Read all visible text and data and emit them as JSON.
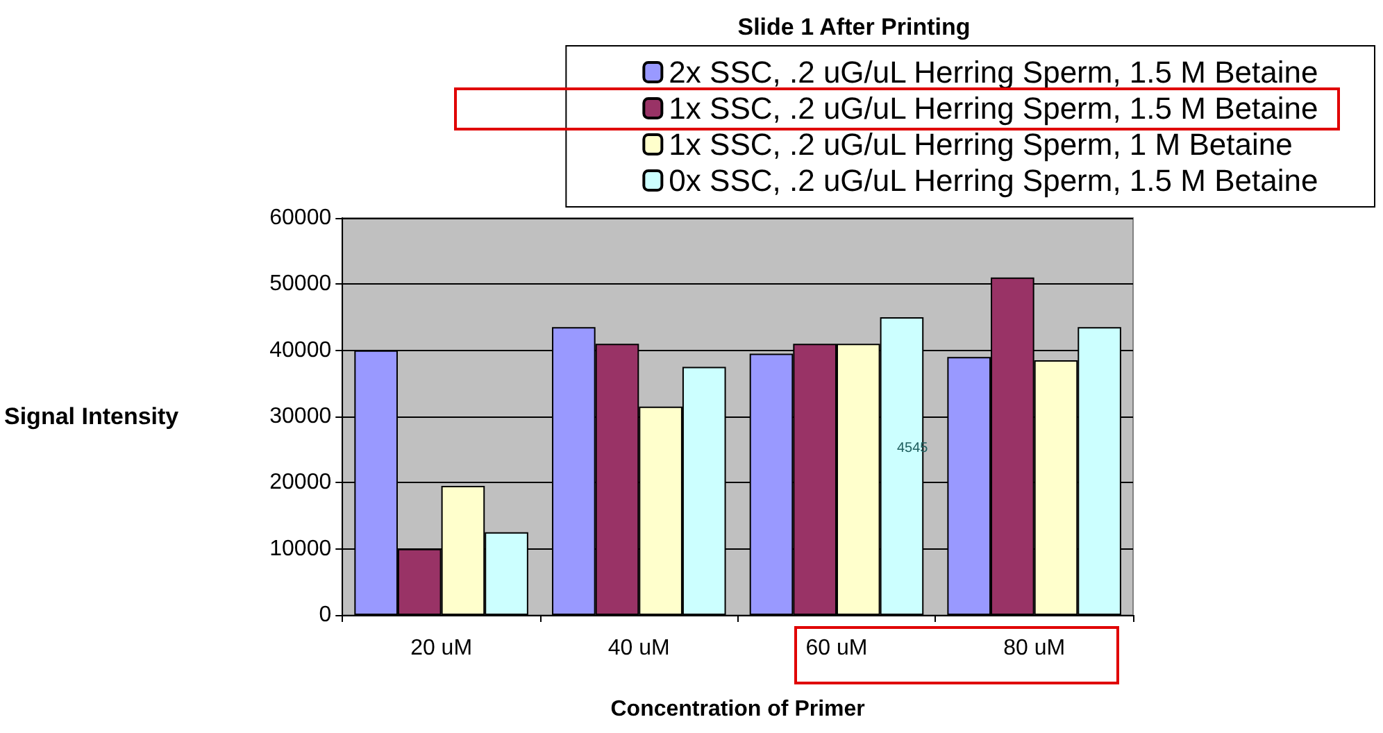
{
  "chart_data": {
    "type": "bar",
    "title": "Slide 1 After Printing",
    "xlabel": "Concentration of Primer",
    "ylabel": "Signal Intensity",
    "categories": [
      "20 uM",
      "40 uM",
      "60 uM",
      "80 uM"
    ],
    "series": [
      {
        "name": "2x SSC, .2 uG/uL Herring Sperm, 1.5 M Betaine",
        "color": "#9999ff",
        "values": [
          40000,
          43500,
          39500,
          39000
        ]
      },
      {
        "name": "1x SSC, .2 uG/uL Herring Sperm, 1.5 M Betaine",
        "color": "#993366",
        "values": [
          10000,
          41000,
          41000,
          51000
        ]
      },
      {
        "name": "1x SSC, .2 uG/uL Herring Sperm, 1 M Betaine",
        "color": "#ffffcc",
        "values": [
          19500,
          31500,
          41000,
          38500
        ]
      },
      {
        "name": "0x SSC, .2 uG/uL Herring Sperm, 1.5 M Betaine",
        "color": "#ccffff",
        "values": [
          12500,
          37500,
          45000,
          43500
        ]
      }
    ],
    "annotations": [
      "4545"
    ],
    "ylim": [
      0,
      60000
    ],
    "yticks": [
      0,
      10000,
      20000,
      30000,
      40000,
      50000,
      60000
    ],
    "grid": "y",
    "legend": "top right"
  }
}
